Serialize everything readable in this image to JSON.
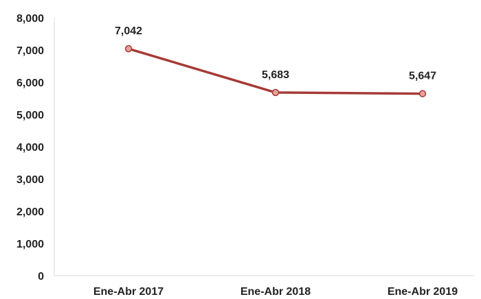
{
  "chart_data": {
    "type": "line",
    "title": "",
    "xlabel": "",
    "ylabel": "",
    "categories": [
      "Ene-Abr 2017",
      "Ene-Abr 2018",
      "Ene-Abr 2019"
    ],
    "series": [
      {
        "values": [
          7042,
          5683,
          5647
        ],
        "data_labels": [
          "7,042",
          "5,683",
          "5,647"
        ],
        "color": "#a53a36",
        "marker_fill": "#e8a09c"
      }
    ],
    "ylim": [
      0,
      8000
    ],
    "yticks": [
      0,
      1000,
      2000,
      3000,
      4000,
      5000,
      6000,
      7000,
      8000
    ],
    "ytick_labels": [
      "0",
      "1,000",
      "2,000",
      "3,000",
      "4,000",
      "5,000",
      "6,000",
      "7,000",
      "8,000"
    ],
    "grid": false,
    "legend": "none"
  }
}
